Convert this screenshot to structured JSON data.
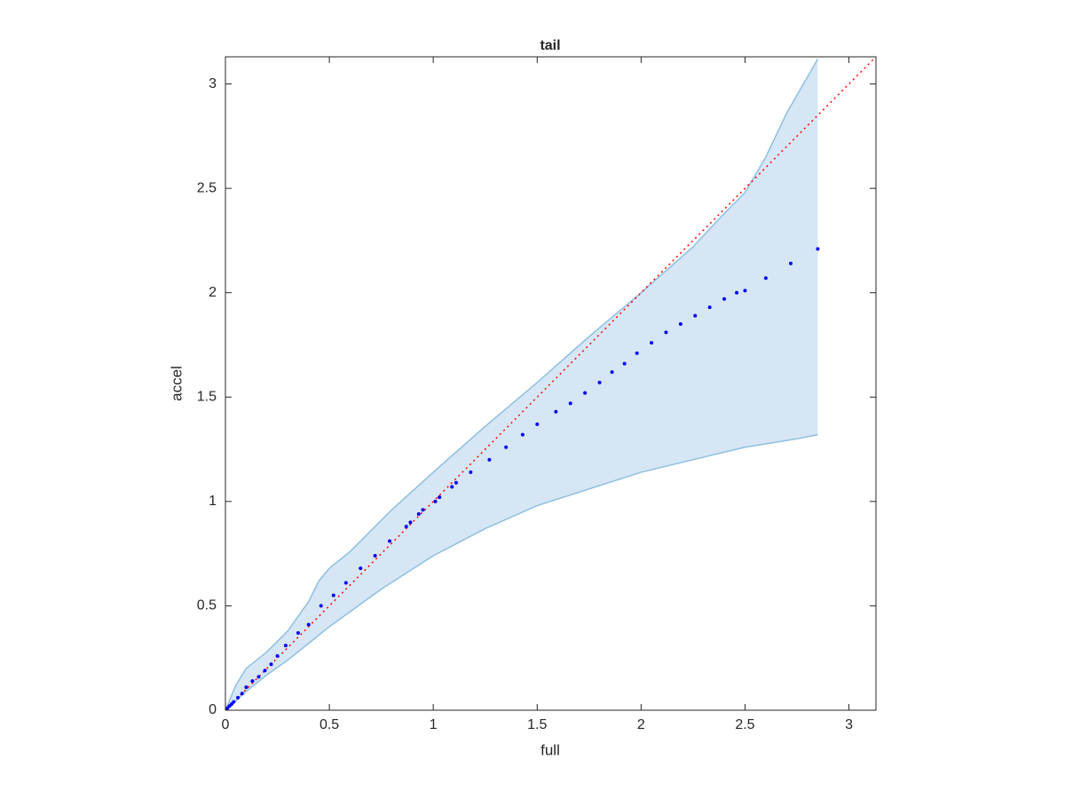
{
  "chart_data": {
    "type": "scatter",
    "title": "tail",
    "x_label": "full",
    "y_label": "accel",
    "xlim": [
      0,
      3.13
    ],
    "ylim": [
      0,
      3.13
    ],
    "xticks": [
      0,
      0.5,
      1,
      1.5,
      2,
      2.5,
      3
    ],
    "yticks": [
      0,
      0.5,
      1,
      1.5,
      2,
      2.5,
      3
    ],
    "series": [
      {
        "color": "#0000ff",
        "x": [
          0.01,
          0.02,
          0.03,
          0.04,
          0.06,
          0.08,
          0.1,
          0.13,
          0.16,
          0.19,
          0.22,
          0.25,
          0.29,
          0.35,
          0.4,
          0.46,
          0.52,
          0.58,
          0.65,
          0.72,
          0.79,
          0.87,
          0.89,
          0.93,
          0.95,
          1.01,
          1.03,
          1.09,
          1.11,
          1.18,
          1.27,
          1.35,
          1.43,
          1.5,
          1.59,
          1.66,
          1.73,
          1.8,
          1.86,
          1.92,
          1.98,
          2.05,
          2.12,
          2.19,
          2.26,
          2.33,
          2.4,
          2.46,
          2.5,
          2.6,
          2.72,
          2.85
        ],
        "values": [
          0.01,
          0.02,
          0.03,
          0.04,
          0.06,
          0.08,
          0.11,
          0.14,
          0.16,
          0.19,
          0.22,
          0.26,
          0.31,
          0.37,
          0.41,
          0.5,
          0.55,
          0.61,
          0.68,
          0.74,
          0.81,
          0.88,
          0.9,
          0.94,
          0.96,
          1.0,
          1.02,
          1.07,
          1.09,
          1.14,
          1.2,
          1.26,
          1.32,
          1.37,
          1.43,
          1.47,
          1.52,
          1.57,
          1.62,
          1.66,
          1.71,
          1.76,
          1.81,
          1.85,
          1.89,
          1.93,
          1.97,
          2.0,
          2.01,
          2.07,
          2.14,
          2.21
        ]
      }
    ],
    "band_upper": {
      "color": "#8fbfe0",
      "x": [
        0,
        0.05,
        0.1,
        0.2,
        0.3,
        0.4,
        0.45,
        0.5,
        0.6,
        0.7,
        0.8,
        1,
        1.25,
        1.5,
        1.75,
        2,
        2.25,
        2.4,
        2.5,
        2.6,
        2.7,
        2.85
      ],
      "values": [
        0,
        0.12,
        0.2,
        0.28,
        0.38,
        0.52,
        0.62,
        0.68,
        0.76,
        0.86,
        0.96,
        1.14,
        1.36,
        1.57,
        1.79,
        2.0,
        2.22,
        2.38,
        2.48,
        2.65,
        2.86,
        3.12
      ]
    },
    "band_lower": {
      "color": "#8fbfe0",
      "x": [
        0,
        0.1,
        0.2,
        0.3,
        0.4,
        0.5,
        0.75,
        1,
        1.25,
        1.5,
        1.75,
        2,
        2.25,
        2.5,
        2.75,
        2.85
      ],
      "values": [
        0,
        0.09,
        0.17,
        0.24,
        0.32,
        0.4,
        0.58,
        0.74,
        0.87,
        0.98,
        1.06,
        1.14,
        1.2,
        1.26,
        1.3,
        1.32
      ]
    },
    "band_fill": "#d6e6f4",
    "diagonal": {
      "color": "#ff0000",
      "x": [
        0,
        3.13
      ],
      "values": [
        0,
        3.13
      ]
    }
  }
}
